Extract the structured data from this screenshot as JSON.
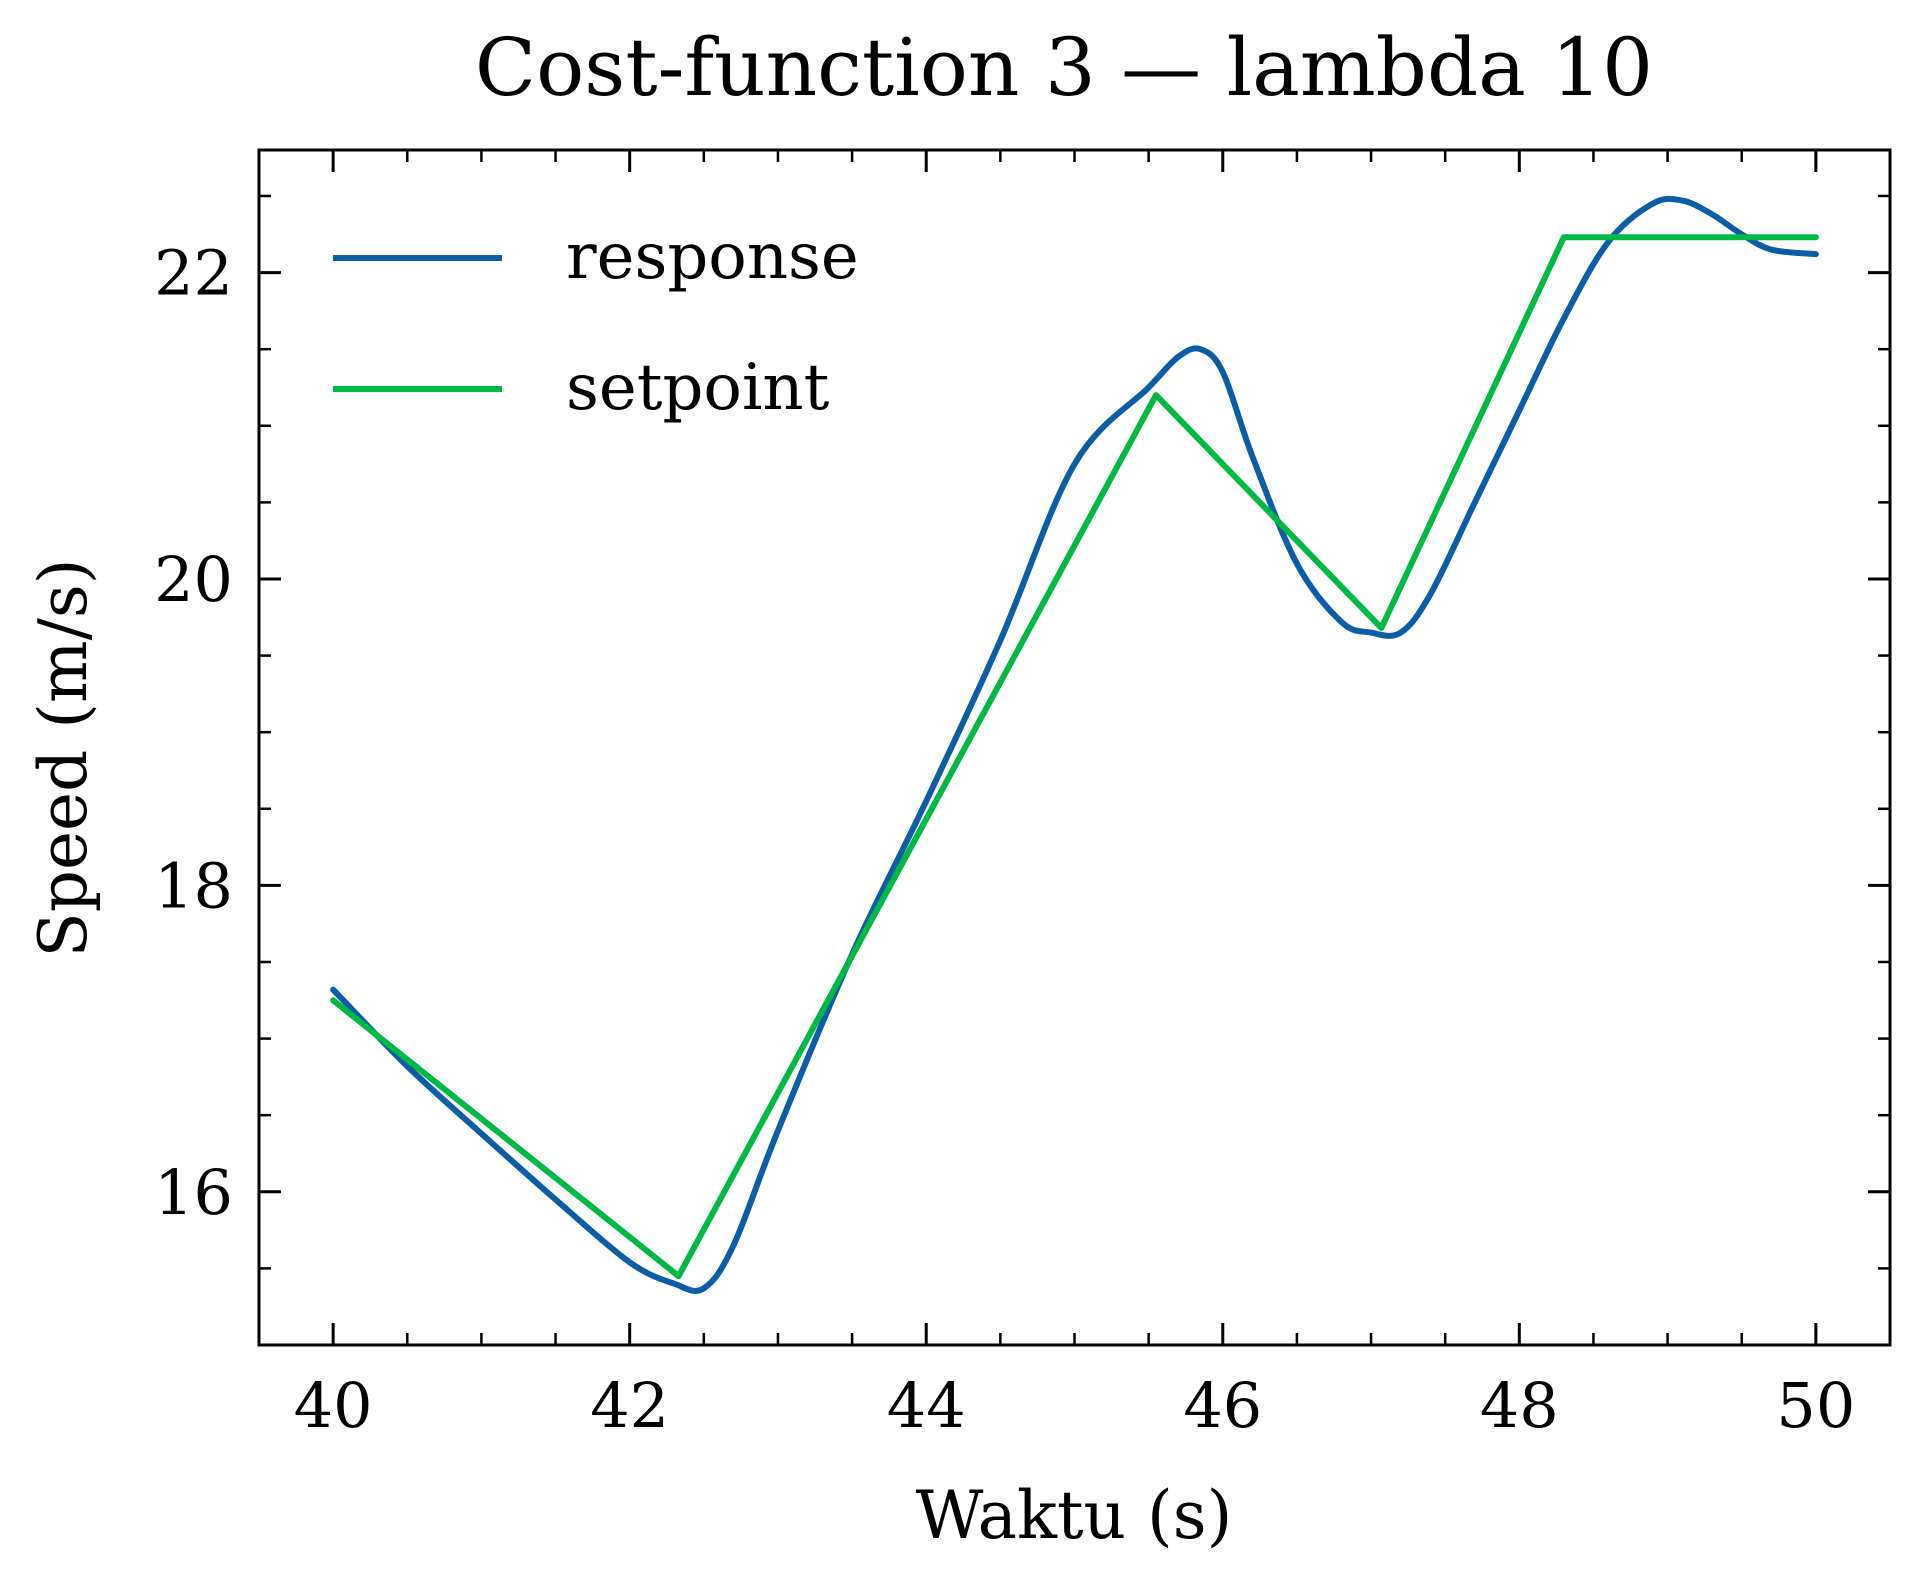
{
  "chart_data": {
    "type": "line",
    "title": "Cost-function 3 — lambda 10",
    "xlabel": "Waktu (s)",
    "ylabel": "Speed (m/s)",
    "xlim": [
      39.5,
      50.5
    ],
    "ylim": [
      15.0,
      22.8
    ],
    "xticks": [
      40,
      42,
      44,
      46,
      48,
      50
    ],
    "xtick_labels": [
      "40",
      "42",
      "44",
      "46",
      "48",
      "50"
    ],
    "xminor_step": 0.5,
    "yticks": [
      16,
      18,
      20,
      22
    ],
    "ytick_labels": [
      "16",
      "18",
      "20",
      "22"
    ],
    "yminor_step": 0.5,
    "grid": false,
    "legend_position": "top-left",
    "series": [
      {
        "name": "response",
        "color": "#0c5da5",
        "x": [
          40.0,
          40.5,
          41.0,
          41.5,
          42.0,
          42.3,
          42.5,
          42.7,
          43.0,
          43.5,
          44.0,
          44.5,
          45.0,
          45.5,
          45.7,
          45.85,
          46.0,
          46.2,
          46.5,
          46.8,
          47.0,
          47.2,
          47.4,
          47.7,
          48.0,
          48.3,
          48.6,
          48.9,
          49.1,
          49.3,
          49.5,
          49.7,
          50.0
        ],
        "y": [
          17.32,
          16.82,
          16.38,
          15.95,
          15.54,
          15.4,
          15.37,
          15.65,
          16.4,
          17.55,
          18.55,
          19.6,
          20.75,
          21.25,
          21.45,
          21.5,
          21.35,
          20.8,
          20.1,
          19.72,
          19.65,
          19.65,
          19.9,
          20.5,
          21.1,
          21.7,
          22.2,
          22.45,
          22.47,
          22.38,
          22.25,
          22.15,
          22.12
        ]
      },
      {
        "name": "setpoint",
        "color": "#00b945",
        "x": [
          40.0,
          42.33,
          45.55,
          47.07,
          48.3,
          50.0
        ],
        "y": [
          17.25,
          15.45,
          21.2,
          19.68,
          22.23,
          22.23
        ]
      }
    ]
  }
}
